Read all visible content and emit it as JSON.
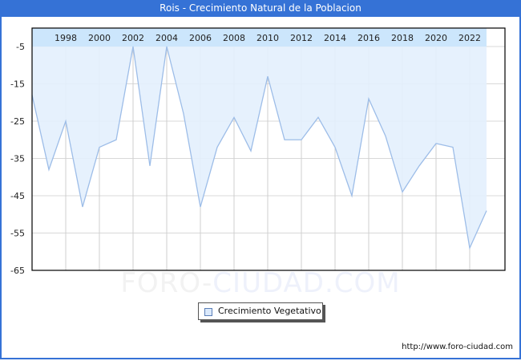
{
  "header": {
    "title": "Rois - Crecimiento Natural de la Poblacion"
  },
  "legend": {
    "label": "Crecimiento Vegetativo",
    "swatch_color": "#dbe9fb"
  },
  "watermark": {
    "part1": "FORO-",
    "part2": "CIUDAD.COM"
  },
  "footer": {
    "url": "http://www.foro-ciudad.com"
  },
  "colors": {
    "title_bar": "#3572d6",
    "line": "#9dbde8",
    "fill": "#e3f0fd",
    "header_band": "#cce6fc",
    "grid": "#d8d8d8"
  },
  "chart_data": {
    "type": "area",
    "title": "Rois - Crecimiento Natural de la Poblacion",
    "xlabel": "",
    "ylabel": "",
    "x": [
      1996,
      1997,
      1998,
      1999,
      2000,
      2001,
      2002,
      2003,
      2004,
      2005,
      2006,
      2007,
      2008,
      2009,
      2010,
      2011,
      2012,
      2013,
      2014,
      2015,
      2016,
      2017,
      2018,
      2019,
      2020,
      2021,
      2022,
      2023
    ],
    "series": [
      {
        "name": "Crecimiento Vegetativo",
        "values": [
          -18,
          -38,
          -25,
          -48,
          -32,
          -30,
          -5,
          -37,
          -5,
          -23,
          -48,
          -32,
          -24,
          -33,
          -13,
          -30,
          -30,
          -24,
          -32,
          -45,
          -19,
          -29,
          -44,
          -37,
          -31,
          -32,
          -59,
          -49
        ]
      }
    ],
    "x_tick_labels": [
      "1998",
      "2000",
      "2002",
      "2004",
      "2006",
      "2008",
      "2010",
      "2012",
      "2014",
      "2016",
      "2018",
      "2020",
      "2022"
    ],
    "y_tick_labels": [
      "-5",
      "-15",
      "-25",
      "-35",
      "-45",
      "-55",
      "-65"
    ],
    "ylim": [
      -65,
      0
    ],
    "grid": true,
    "legend_position": "bottom-center"
  }
}
